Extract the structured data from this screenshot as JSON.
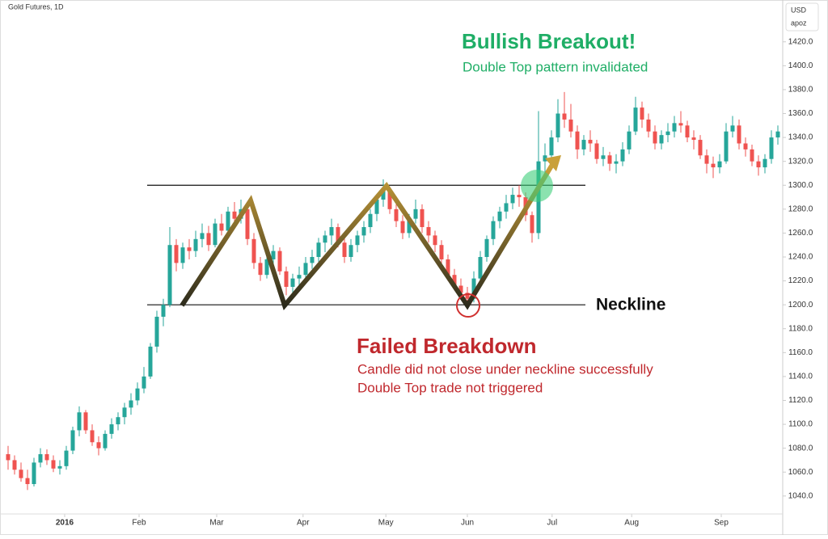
{
  "chart_data": {
    "type": "candlestick",
    "title": "Gold Futures, 1D",
    "currency": "USD",
    "unit_label": "apoz",
    "up_color": "#26a69a",
    "down_color": "#ef5350",
    "ylim": [
      1025,
      1455
    ],
    "xlim": [
      -1.25,
      119.75
    ],
    "yticks": [
      {
        "value": 1040,
        "label": "1040.0"
      },
      {
        "value": 1060,
        "label": "1060.0"
      },
      {
        "value": 1080,
        "label": "1080.0"
      },
      {
        "value": 1100,
        "label": "1100.0"
      },
      {
        "value": 1120,
        "label": "1120.0"
      },
      {
        "value": 1140,
        "label": "1140.0"
      },
      {
        "value": 1160,
        "label": "1160.0"
      },
      {
        "value": 1180,
        "label": "1180.0"
      },
      {
        "value": 1200,
        "label": "1200.0"
      },
      {
        "value": 1220,
        "label": "1220.0"
      },
      {
        "value": 1240,
        "label": "1240.0"
      },
      {
        "value": 1260,
        "label": "1260.0"
      },
      {
        "value": 1280,
        "label": "1280.0"
      },
      {
        "value": 1300,
        "label": "1300.0"
      },
      {
        "value": 1320,
        "label": "1320.0"
      },
      {
        "value": 1340,
        "label": "1340.0"
      },
      {
        "value": 1360,
        "label": "1360.0"
      },
      {
        "value": 1380,
        "label": "1380.0"
      },
      {
        "value": 1400,
        "label": "1400.0"
      },
      {
        "value": 1420,
        "label": "1420.0"
      }
    ],
    "xticks": [
      {
        "value": 8.75,
        "label": "2016"
      },
      {
        "value": 20.25,
        "label": "Feb"
      },
      {
        "value": 32.25,
        "label": "Mar"
      },
      {
        "value": 45.6,
        "label": "Apr"
      },
      {
        "value": 58.4,
        "label": "May"
      },
      {
        "value": 71,
        "label": "Jun"
      },
      {
        "value": 84.1,
        "label": "Jul"
      },
      {
        "value": 96.4,
        "label": "Aug"
      },
      {
        "value": 110.25,
        "label": "Sep"
      }
    ],
    "lines": [
      {
        "value": 1300
      },
      {
        "value": 1200,
        "label": "Neckline"
      }
    ],
    "annotations": [
      {
        "title": "Bullish Breakout!",
        "text": [
          "Double Top pattern invalidated"
        ],
        "color": "#1fae66"
      },
      {
        "title": "Failed Breakdown",
        "text": [
          "Candle did not close under neckline successfully",
          "Double Top trade not triggered"
        ],
        "color": "#c0282d"
      }
    ],
    "candles": [
      [
        1075,
        1082,
        1062,
        1070
      ],
      [
        1070,
        1074,
        1058,
        1062
      ],
      [
        1062,
        1068,
        1052,
        1055
      ],
      [
        1055,
        1062,
        1045,
        1050
      ],
      [
        1050,
        1072,
        1048,
        1068
      ],
      [
        1068,
        1080,
        1064,
        1075
      ],
      [
        1075,
        1079,
        1066,
        1070
      ],
      [
        1070,
        1074,
        1060,
        1063
      ],
      [
        1063,
        1070,
        1058,
        1065
      ],
      [
        1065,
        1082,
        1062,
        1078
      ],
      [
        1078,
        1098,
        1075,
        1095
      ],
      [
        1095,
        1115,
        1090,
        1110
      ],
      [
        1110,
        1112,
        1092,
        1095
      ],
      [
        1095,
        1100,
        1082,
        1085
      ],
      [
        1085,
        1090,
        1074,
        1080
      ],
      [
        1080,
        1095,
        1078,
        1092
      ],
      [
        1092,
        1105,
        1088,
        1100
      ],
      [
        1100,
        1110,
        1095,
        1106
      ],
      [
        1106,
        1118,
        1100,
        1114
      ],
      [
        1114,
        1126,
        1108,
        1120
      ],
      [
        1120,
        1135,
        1116,
        1130
      ],
      [
        1130,
        1148,
        1126,
        1140
      ],
      [
        1140,
        1168,
        1138,
        1165
      ],
      [
        1165,
        1195,
        1160,
        1190
      ],
      [
        1190,
        1205,
        1182,
        1200
      ],
      [
        1200,
        1265,
        1198,
        1250
      ],
      [
        1250,
        1255,
        1228,
        1235
      ],
      [
        1235,
        1252,
        1230,
        1248
      ],
      [
        1248,
        1255,
        1238,
        1245
      ],
      [
        1245,
        1262,
        1240,
        1255
      ],
      [
        1255,
        1268,
        1248,
        1260
      ],
      [
        1260,
        1266,
        1245,
        1250
      ],
      [
        1250,
        1272,
        1248,
        1268
      ],
      [
        1268,
        1276,
        1258,
        1262
      ],
      [
        1262,
        1282,
        1258,
        1278
      ],
      [
        1278,
        1286,
        1266,
        1272
      ],
      [
        1272,
        1288,
        1268,
        1280
      ],
      [
        1280,
        1282,
        1250,
        1255
      ],
      [
        1255,
        1260,
        1230,
        1235
      ],
      [
        1235,
        1240,
        1220,
        1225
      ],
      [
        1225,
        1242,
        1222,
        1238
      ],
      [
        1238,
        1250,
        1232,
        1245
      ],
      [
        1245,
        1248,
        1225,
        1228
      ],
      [
        1228,
        1232,
        1208,
        1215
      ],
      [
        1215,
        1226,
        1210,
        1222
      ],
      [
        1222,
        1232,
        1216,
        1225
      ],
      [
        1225,
        1240,
        1220,
        1235
      ],
      [
        1235,
        1246,
        1230,
        1240
      ],
      [
        1240,
        1256,
        1236,
        1252
      ],
      [
        1252,
        1262,
        1244,
        1258
      ],
      [
        1258,
        1272,
        1250,
        1265
      ],
      [
        1265,
        1268,
        1248,
        1252
      ],
      [
        1252,
        1256,
        1235,
        1240
      ],
      [
        1240,
        1255,
        1236,
        1250
      ],
      [
        1250,
        1262,
        1244,
        1258
      ],
      [
        1258,
        1270,
        1252,
        1265
      ],
      [
        1265,
        1280,
        1260,
        1276
      ],
      [
        1276,
        1292,
        1270,
        1288
      ],
      [
        1288,
        1305,
        1282,
        1295
      ],
      [
        1295,
        1298,
        1276,
        1280
      ],
      [
        1280,
        1284,
        1265,
        1270
      ],
      [
        1270,
        1275,
        1255,
        1260
      ],
      [
        1260,
        1276,
        1256,
        1272
      ],
      [
        1272,
        1288,
        1268,
        1280
      ],
      [
        1280,
        1284,
        1260,
        1265
      ],
      [
        1265,
        1270,
        1252,
        1258
      ],
      [
        1258,
        1262,
        1244,
        1250
      ],
      [
        1250,
        1254,
        1232,
        1238
      ],
      [
        1238,
        1242,
        1220,
        1225
      ],
      [
        1225,
        1230,
        1212,
        1216
      ],
      [
        1216,
        1222,
        1205,
        1210
      ],
      [
        1210,
        1215,
        1200,
        1205
      ],
      [
        1205,
        1228,
        1202,
        1222
      ],
      [
        1222,
        1245,
        1218,
        1240
      ],
      [
        1240,
        1258,
        1236,
        1255
      ],
      [
        1255,
        1274,
        1250,
        1270
      ],
      [
        1270,
        1282,
        1264,
        1278
      ],
      [
        1278,
        1292,
        1272,
        1285
      ],
      [
        1285,
        1298,
        1280,
        1292
      ],
      [
        1292,
        1300,
        1282,
        1290
      ],
      [
        1290,
        1294,
        1270,
        1275
      ],
      [
        1275,
        1278,
        1252,
        1260
      ],
      [
        1260,
        1362,
        1255,
        1320
      ],
      [
        1320,
        1335,
        1310,
        1325
      ],
      [
        1325,
        1346,
        1318,
        1340
      ],
      [
        1340,
        1372,
        1336,
        1360
      ],
      [
        1360,
        1378,
        1348,
        1355
      ],
      [
        1355,
        1368,
        1340,
        1345
      ],
      [
        1345,
        1350,
        1322,
        1330
      ],
      [
        1330,
        1342,
        1325,
        1338
      ],
      [
        1338,
        1346,
        1328,
        1335
      ],
      [
        1335,
        1338,
        1318,
        1322
      ],
      [
        1322,
        1332,
        1316,
        1325
      ],
      [
        1325,
        1328,
        1312,
        1318
      ],
      [
        1318,
        1326,
        1310,
        1320
      ],
      [
        1320,
        1336,
        1316,
        1330
      ],
      [
        1330,
        1350,
        1326,
        1345
      ],
      [
        1345,
        1374,
        1342,
        1365
      ],
      [
        1365,
        1370,
        1348,
        1355
      ],
      [
        1355,
        1360,
        1340,
        1345
      ],
      [
        1345,
        1350,
        1330,
        1335
      ],
      [
        1335,
        1346,
        1330,
        1342
      ],
      [
        1342,
        1352,
        1336,
        1345
      ],
      [
        1345,
        1358,
        1340,
        1352
      ],
      [
        1352,
        1362,
        1344,
        1350
      ],
      [
        1350,
        1354,
        1336,
        1340
      ],
      [
        1340,
        1346,
        1330,
        1338
      ],
      [
        1338,
        1342,
        1322,
        1325
      ],
      [
        1325,
        1330,
        1310,
        1318
      ],
      [
        1318,
        1324,
        1306,
        1315
      ],
      [
        1315,
        1326,
        1310,
        1320
      ],
      [
        1320,
        1352,
        1318,
        1345
      ],
      [
        1345,
        1358,
        1340,
        1350
      ],
      [
        1350,
        1355,
        1330,
        1335
      ],
      [
        1335,
        1340,
        1324,
        1330
      ],
      [
        1330,
        1334,
        1316,
        1320
      ],
      [
        1320,
        1325,
        1308,
        1315
      ],
      [
        1315,
        1326,
        1310,
        1322
      ],
      [
        1322,
        1346,
        1318,
        1340
      ],
      [
        1340,
        1350,
        1334,
        1345
      ]
    ]
  }
}
